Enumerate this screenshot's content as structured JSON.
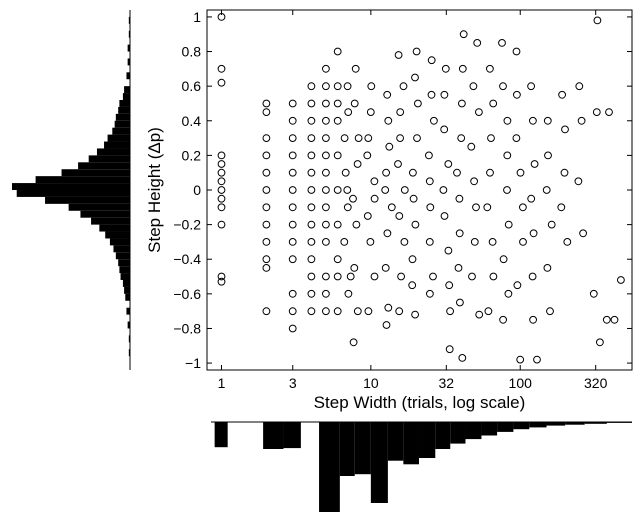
{
  "chart_data": {
    "type": "scatter",
    "title": "",
    "xlabel": "Step Width (trials, log scale)",
    "ylabel": "Step Height (Δp)",
    "x_scale": "log",
    "xlim": [
      0.8,
      560
    ],
    "ylim": [
      -1.04,
      1.04
    ],
    "grid": false,
    "xticks": [
      {
        "value": 1,
        "label": "1"
      },
      {
        "value": 3,
        "label": "3"
      },
      {
        "value": 10,
        "label": "10"
      },
      {
        "value": 32,
        "label": "32"
      },
      {
        "value": 100,
        "label": "100"
      },
      {
        "value": 320,
        "label": "320"
      }
    ],
    "yticks": [
      {
        "value": 1,
        "label": "1"
      },
      {
        "value": 0.8,
        "label": "0.8"
      },
      {
        "value": 0.6,
        "label": "0.6"
      },
      {
        "value": 0.4,
        "label": "0.4"
      },
      {
        "value": 0.2,
        "label": "0.2"
      },
      {
        "value": 0,
        "label": "0"
      },
      {
        "value": -0.2,
        "label": "−0.2"
      },
      {
        "value": -0.4,
        "label": "−0.4"
      },
      {
        "value": -0.6,
        "label": "−0.6"
      },
      {
        "value": -0.8,
        "label": "−0.8"
      },
      {
        "value": -1,
        "label": "−1"
      }
    ],
    "points": [
      [
        1,
        1.0
      ],
      [
        1,
        0.7
      ],
      [
        1,
        0.62
      ],
      [
        1,
        0.2
      ],
      [
        1,
        0.15
      ],
      [
        1,
        0.1
      ],
      [
        1,
        0.05
      ],
      [
        1,
        0.0
      ],
      [
        1,
        -0.05
      ],
      [
        1,
        -0.1
      ],
      [
        1,
        -0.2
      ],
      [
        1,
        -0.5
      ],
      [
        1,
        -0.53
      ],
      [
        2,
        0.5
      ],
      [
        2,
        0.45
      ],
      [
        2,
        0.3
      ],
      [
        2,
        0.2
      ],
      [
        2,
        0.1
      ],
      [
        2,
        0.0
      ],
      [
        2,
        -0.1
      ],
      [
        2,
        -0.2
      ],
      [
        2,
        -0.3
      ],
      [
        2,
        -0.4
      ],
      [
        2,
        -0.45
      ],
      [
        2,
        -0.7
      ],
      [
        3,
        0.5
      ],
      [
        3,
        0.4
      ],
      [
        3,
        0.3
      ],
      [
        3,
        0.2
      ],
      [
        3,
        0.1
      ],
      [
        3,
        0.0
      ],
      [
        3,
        -0.1
      ],
      [
        3,
        -0.2
      ],
      [
        3,
        -0.3
      ],
      [
        3,
        -0.4
      ],
      [
        3,
        -0.6
      ],
      [
        3,
        -0.7
      ],
      [
        3,
        -0.8
      ],
      [
        4,
        0.6
      ],
      [
        4,
        0.5
      ],
      [
        4,
        0.4
      ],
      [
        4,
        0.3
      ],
      [
        4,
        0.2
      ],
      [
        4,
        0.1
      ],
      [
        4,
        0.0
      ],
      [
        4,
        -0.1
      ],
      [
        4,
        -0.2
      ],
      [
        4,
        -0.3
      ],
      [
        4,
        -0.4
      ],
      [
        4,
        -0.5
      ],
      [
        4,
        -0.6
      ],
      [
        4,
        -0.7
      ],
      [
        5,
        0.7
      ],
      [
        5,
        0.6
      ],
      [
        5,
        0.5
      ],
      [
        5,
        0.4
      ],
      [
        5,
        0.3
      ],
      [
        5,
        0.2
      ],
      [
        5,
        0.1
      ],
      [
        5,
        0.0
      ],
      [
        5,
        -0.1
      ],
      [
        5,
        -0.2
      ],
      [
        5,
        -0.3
      ],
      [
        5,
        -0.5
      ],
      [
        5,
        -0.6
      ],
      [
        5,
        -0.7
      ],
      [
        6,
        0.8
      ],
      [
        6,
        0.6
      ],
      [
        6,
        0.5
      ],
      [
        6,
        0.4
      ],
      [
        6,
        0.2
      ],
      [
        6,
        0.0
      ],
      [
        6,
        -0.2
      ],
      [
        6,
        -0.4
      ],
      [
        6,
        -0.5
      ],
      [
        6,
        -0.7
      ],
      [
        7,
        0.6
      ],
      [
        7,
        0.45
      ],
      [
        7,
        0.3
      ],
      [
        7,
        0.1
      ],
      [
        7,
        0.0
      ],
      [
        7,
        -0.1
      ],
      [
        7,
        -0.3
      ],
      [
        7,
        -0.5
      ],
      [
        7,
        -0.6
      ],
      [
        8,
        0.7
      ],
      [
        8,
        0.5
      ],
      [
        8,
        0.3
      ],
      [
        8,
        0.15
      ],
      [
        8,
        -0.05
      ],
      [
        8,
        -0.2
      ],
      [
        8,
        -0.45
      ],
      [
        8,
        -0.7
      ],
      [
        8,
        -0.88
      ],
      [
        10,
        0.6
      ],
      [
        10,
        0.45
      ],
      [
        10,
        0.3
      ],
      [
        10,
        0.2
      ],
      [
        10,
        0.05
      ],
      [
        10,
        -0.05
      ],
      [
        10,
        -0.15
      ],
      [
        10,
        -0.3
      ],
      [
        10,
        -0.5
      ],
      [
        10,
        -0.7
      ],
      [
        13,
        0.55
      ],
      [
        13,
        0.4
      ],
      [
        13,
        0.25
      ],
      [
        13,
        0.1
      ],
      [
        13,
        0.0
      ],
      [
        13,
        -0.1
      ],
      [
        13,
        -0.25
      ],
      [
        13,
        -0.45
      ],
      [
        13,
        -0.68
      ],
      [
        13,
        -0.78
      ],
      [
        16,
        0.78
      ],
      [
        16,
        0.6
      ],
      [
        16,
        0.45
      ],
      [
        16,
        0.3
      ],
      [
        16,
        0.15
      ],
      [
        16,
        0.0
      ],
      [
        16,
        -0.15
      ],
      [
        16,
        -0.3
      ],
      [
        16,
        -0.5
      ],
      [
        16,
        -0.7
      ],
      [
        20,
        0.8
      ],
      [
        20,
        0.65
      ],
      [
        20,
        0.5
      ],
      [
        20,
        0.3
      ],
      [
        20,
        0.1
      ],
      [
        20,
        -0.05
      ],
      [
        20,
        -0.2
      ],
      [
        20,
        -0.4
      ],
      [
        20,
        -0.55
      ],
      [
        20,
        -0.72
      ],
      [
        25,
        0.75
      ],
      [
        25,
        0.55
      ],
      [
        25,
        0.4
      ],
      [
        25,
        0.2
      ],
      [
        25,
        0.05
      ],
      [
        25,
        -0.1
      ],
      [
        25,
        -0.3
      ],
      [
        25,
        -0.5
      ],
      [
        25,
        -0.6
      ],
      [
        32,
        0.7
      ],
      [
        32,
        0.55
      ],
      [
        32,
        0.35
      ],
      [
        32,
        0.15
      ],
      [
        32,
        0.0
      ],
      [
        32,
        -0.15
      ],
      [
        32,
        -0.35
      ],
      [
        32,
        -0.55
      ],
      [
        32,
        -0.7
      ],
      [
        32,
        -0.92
      ],
      [
        40,
        0.9
      ],
      [
        40,
        0.7
      ],
      [
        40,
        0.5
      ],
      [
        40,
        0.3
      ],
      [
        40,
        0.1
      ],
      [
        40,
        -0.05
      ],
      [
        40,
        -0.25
      ],
      [
        40,
        -0.45
      ],
      [
        40,
        -0.65
      ],
      [
        40,
        -0.97
      ],
      [
        50,
        0.85
      ],
      [
        50,
        0.6
      ],
      [
        50,
        0.45
      ],
      [
        50,
        0.25
      ],
      [
        50,
        0.05
      ],
      [
        50,
        -0.1
      ],
      [
        50,
        -0.3
      ],
      [
        50,
        -0.5
      ],
      [
        50,
        -0.72
      ],
      [
        63,
        0.7
      ],
      [
        63,
        0.5
      ],
      [
        63,
        0.3
      ],
      [
        63,
        0.1
      ],
      [
        63,
        -0.1
      ],
      [
        63,
        -0.3
      ],
      [
        63,
        -0.5
      ],
      [
        63,
        -0.7
      ],
      [
        80,
        0.85
      ],
      [
        80,
        0.6
      ],
      [
        80,
        0.4
      ],
      [
        80,
        0.2
      ],
      [
        80,
        0.0
      ],
      [
        80,
        -0.2
      ],
      [
        80,
        -0.4
      ],
      [
        80,
        -0.6
      ],
      [
        80,
        -0.75
      ],
      [
        100,
        0.8
      ],
      [
        100,
        0.55
      ],
      [
        100,
        0.3
      ],
      [
        100,
        0.1
      ],
      [
        100,
        -0.1
      ],
      [
        100,
        -0.3
      ],
      [
        100,
        -0.55
      ],
      [
        100,
        -0.98
      ],
      [
        125,
        0.6
      ],
      [
        125,
        0.4
      ],
      [
        125,
        0.15
      ],
      [
        125,
        -0.05
      ],
      [
        125,
        -0.25
      ],
      [
        125,
        -0.5
      ],
      [
        125,
        -0.75
      ],
      [
        125,
        -0.98
      ],
      [
        160,
        0.4
      ],
      [
        160,
        0.2
      ],
      [
        160,
        0.0
      ],
      [
        160,
        -0.2
      ],
      [
        160,
        -0.45
      ],
      [
        160,
        -0.7
      ],
      [
        200,
        0.55
      ],
      [
        200,
        0.35
      ],
      [
        200,
        0.1
      ],
      [
        200,
        -0.1
      ],
      [
        200,
        -0.3
      ],
      [
        250,
        0.6
      ],
      [
        250,
        0.4
      ],
      [
        250,
        0.05
      ],
      [
        250,
        -0.25
      ],
      [
        320,
        0.98
      ],
      [
        320,
        0.45
      ],
      [
        320,
        -0.6
      ],
      [
        400,
        0.45
      ],
      [
        400,
        -0.75
      ],
      [
        450,
        -0.52
      ],
      [
        450,
        -0.75
      ],
      [
        360,
        -0.88
      ]
    ],
    "y_marginal_histogram": {
      "bin_width": 0.04,
      "bins": [
        {
          "center": 0.98,
          "count": 1
        },
        {
          "center": 0.9,
          "count": 1
        },
        {
          "center": 0.82,
          "count": 2
        },
        {
          "center": 0.74,
          "count": 2
        },
        {
          "center": 0.66,
          "count": 3
        },
        {
          "center": 0.58,
          "count": 5
        },
        {
          "center": 0.54,
          "count": 6
        },
        {
          "center": 0.5,
          "count": 9
        },
        {
          "center": 0.46,
          "count": 10
        },
        {
          "center": 0.42,
          "count": 12
        },
        {
          "center": 0.38,
          "count": 13
        },
        {
          "center": 0.34,
          "count": 15
        },
        {
          "center": 0.3,
          "count": 19
        },
        {
          "center": 0.26,
          "count": 22
        },
        {
          "center": 0.22,
          "count": 28
        },
        {
          "center": 0.18,
          "count": 35
        },
        {
          "center": 0.14,
          "count": 44
        },
        {
          "center": 0.1,
          "count": 58
        },
        {
          "center": 0.06,
          "count": 80
        },
        {
          "center": 0.02,
          "count": 100
        },
        {
          "center": -0.02,
          "count": 96
        },
        {
          "center": -0.06,
          "count": 72
        },
        {
          "center": -0.1,
          "count": 52
        },
        {
          "center": -0.14,
          "count": 42
        },
        {
          "center": -0.18,
          "count": 33
        },
        {
          "center": -0.22,
          "count": 26
        },
        {
          "center": -0.26,
          "count": 21
        },
        {
          "center": -0.3,
          "count": 17
        },
        {
          "center": -0.34,
          "count": 14
        },
        {
          "center": -0.38,
          "count": 12
        },
        {
          "center": -0.42,
          "count": 10
        },
        {
          "center": -0.46,
          "count": 9
        },
        {
          "center": -0.5,
          "count": 8
        },
        {
          "center": -0.54,
          "count": 6
        },
        {
          "center": -0.58,
          "count": 5
        },
        {
          "center": -0.62,
          "count": 4
        },
        {
          "center": -0.7,
          "count": 3
        },
        {
          "center": -0.78,
          "count": 2
        },
        {
          "center": -0.86,
          "count": 1
        },
        {
          "center": -0.94,
          "count": 1
        }
      ]
    },
    "x_marginal_histogram": {
      "bins": [
        {
          "from": 0.9,
          "to": 1.1,
          "count": 28
        },
        {
          "from": 1.9,
          "to": 2.6,
          "count": 30
        },
        {
          "from": 2.6,
          "to": 3.4,
          "count": 29
        },
        {
          "from": 4.5,
          "to": 6.2,
          "count": 100
        },
        {
          "from": 6.2,
          "to": 7.8,
          "count": 60
        },
        {
          "from": 7.8,
          "to": 10,
          "count": 58
        },
        {
          "from": 10,
          "to": 13,
          "count": 90
        },
        {
          "from": 13,
          "to": 16.5,
          "count": 43
        },
        {
          "from": 16.5,
          "to": 21,
          "count": 47
        },
        {
          "from": 21,
          "to": 27,
          "count": 40
        },
        {
          "from": 27,
          "to": 34,
          "count": 30
        },
        {
          "from": 34,
          "to": 43,
          "count": 24
        },
        {
          "from": 43,
          "to": 55,
          "count": 19
        },
        {
          "from": 55,
          "to": 70,
          "count": 15
        },
        {
          "from": 70,
          "to": 90,
          "count": 11
        },
        {
          "from": 90,
          "to": 115,
          "count": 8
        },
        {
          "from": 115,
          "to": 150,
          "count": 6
        },
        {
          "from": 150,
          "to": 200,
          "count": 4
        },
        {
          "from": 200,
          "to": 270,
          "count": 3
        },
        {
          "from": 270,
          "to": 380,
          "count": 2
        },
        {
          "from": 380,
          "to": 560,
          "count": 1
        }
      ]
    }
  }
}
